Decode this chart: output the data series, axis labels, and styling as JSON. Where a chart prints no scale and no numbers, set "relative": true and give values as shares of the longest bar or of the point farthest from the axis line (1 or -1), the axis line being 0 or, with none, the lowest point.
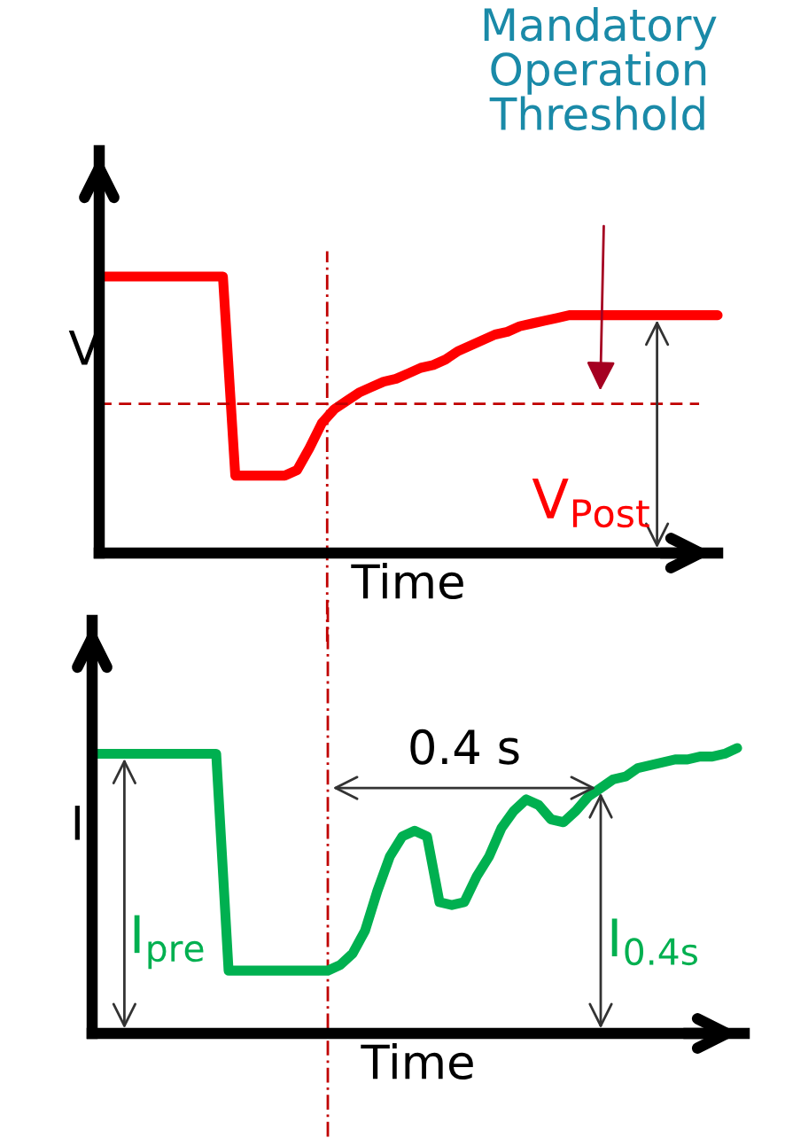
{
  "chart_data": [
    {
      "type": "line",
      "relative": true,
      "ylabel": "V",
      "xlabel": "Time",
      "categories": [
        null,
        null,
        null,
        null,
        null,
        null,
        null,
        null,
        null,
        null,
        null,
        null,
        null,
        null,
        null,
        null,
        null,
        null,
        null,
        null,
        null,
        null,
        null,
        null,
        null,
        null,
        null,
        null,
        null,
        null,
        null,
        null,
        null,
        null,
        null,
        null,
        null,
        null,
        null,
        null,
        null,
        null,
        null,
        null,
        null,
        null,
        null,
        null,
        null,
        null,
        null
      ],
      "series": [
        {
          "color": "#ff0000",
          "values": [
            1,
            1,
            1,
            1,
            1,
            1,
            1,
            1,
            1,
            1,
            1,
            0.28,
            0.28,
            0.28,
            0.28,
            0.28,
            0.3,
            0.38,
            0.47,
            0.52,
            0.55,
            0.58,
            0.6,
            0.62,
            0.63,
            0.65,
            0.67,
            0.68,
            0.7,
            0.73,
            0.75,
            0.77,
            0.79,
            0.8,
            0.82,
            0.83,
            0.84,
            0.85,
            0.86,
            0.86,
            0.86,
            0.86,
            0.86,
            0.86,
            0.86,
            0.86,
            0.86,
            0.86,
            0.86,
            0.86,
            0.86
          ]
        }
      ],
      "ref_lines": [
        {
          "axis": "y",
          "value": 0.54,
          "color": "#c00000",
          "line_style": "dashed"
        }
      ],
      "annotations": [
        "V$_{Post}$",
        "Mandatory\nOperation\nThreshold"
      ],
      "grid": false,
      "tick_labels": false
    },
    {
      "type": "line",
      "relative": true,
      "ylabel": "I",
      "xlabel": "Time",
      "categories": [
        null,
        null,
        null,
        null,
        null,
        null,
        null,
        null,
        null,
        null,
        null,
        null,
        null,
        null,
        null,
        null,
        null,
        null,
        null,
        null,
        null,
        null,
        null,
        null,
        null,
        null,
        null,
        null,
        null,
        null,
        null,
        null,
        null,
        null,
        null,
        null,
        null,
        null,
        null,
        null,
        null,
        null,
        null,
        null,
        null,
        null,
        null,
        null,
        null,
        null,
        null,
        null,
        null
      ],
      "series": [
        {
          "color": "#00b050",
          "values": [
            0.98,
            0.98,
            0.98,
            0.98,
            0.98,
            0.98,
            0.98,
            0.98,
            0.98,
            0.98,
            0.98,
            0.22,
            0.22,
            0.22,
            0.22,
            0.22,
            0.22,
            0.22,
            0.22,
            0.22,
            0.24,
            0.28,
            0.36,
            0.5,
            0.62,
            0.69,
            0.71,
            0.69,
            0.46,
            0.45,
            0.46,
            0.55,
            0.62,
            0.72,
            0.78,
            0.82,
            0.8,
            0.75,
            0.74,
            0.78,
            0.83,
            0.86,
            0.89,
            0.9,
            0.93,
            0.94,
            0.95,
            0.96,
            0.96,
            0.97,
            0.97,
            0.98,
            1.0
          ]
        }
      ],
      "annotations": [
        "0.4 s",
        "I$_{pre}$",
        "I$_{0.4s}$"
      ],
      "grid": false,
      "tick_labels": false
    }
  ]
}
